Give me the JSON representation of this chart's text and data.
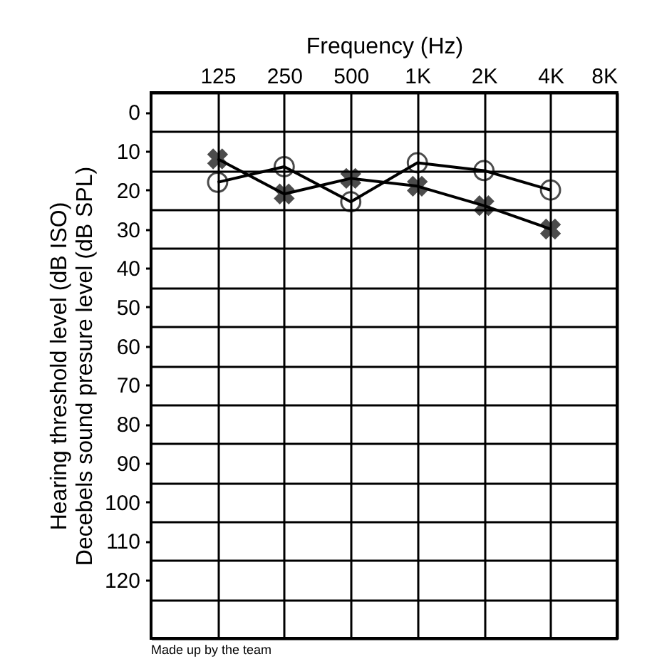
{
  "chart_data": {
    "type": "line",
    "xlabel": "Frequency (Hz)",
    "ylabel": "Hearing threshold level (dB ISO)\nDecebels sound presure level (dB SPL)",
    "categories": [
      "125",
      "250",
      "500",
      "1K",
      "2K",
      "4K",
      "8K"
    ],
    "series": [
      {
        "color": "#000000",
        "marker": "cross",
        "values": [
          12,
          21,
          17,
          19,
          24,
          30,
          null
        ]
      },
      {
        "color": "#000000",
        "marker": "circle",
        "values": [
          18,
          14,
          23,
          13,
          15,
          20,
          null
        ]
      }
    ],
    "ylim": [
      135,
      -5
    ],
    "yticks": [
      {
        "value": -5,
        "label": null
      },
      0,
      {
        "value": 5,
        "label": null
      },
      10,
      {
        "value": 15,
        "label": null
      },
      20,
      {
        "value": 25,
        "label": null
      },
      30,
      {
        "value": 35,
        "label": null
      },
      40,
      {
        "value": 45,
        "label": null
      },
      50,
      {
        "value": 55,
        "label": null
      },
      60,
      {
        "value": 65,
        "label": null
      },
      70,
      {
        "value": 75,
        "label": null
      },
      80,
      {
        "value": 85,
        "label": null
      },
      90,
      {
        "value": 95,
        "label": null
      },
      100,
      {
        "value": 105,
        "label": null
      },
      110,
      {
        "value": 115,
        "label": null
      },
      120,
      {
        "value": 125,
        "label": null
      },
      {
        "value": 135,
        "label": null
      }
    ],
    "grid": true,
    "line_style": "solid",
    "annotations": [
      "Made up by the team"
    ]
  }
}
